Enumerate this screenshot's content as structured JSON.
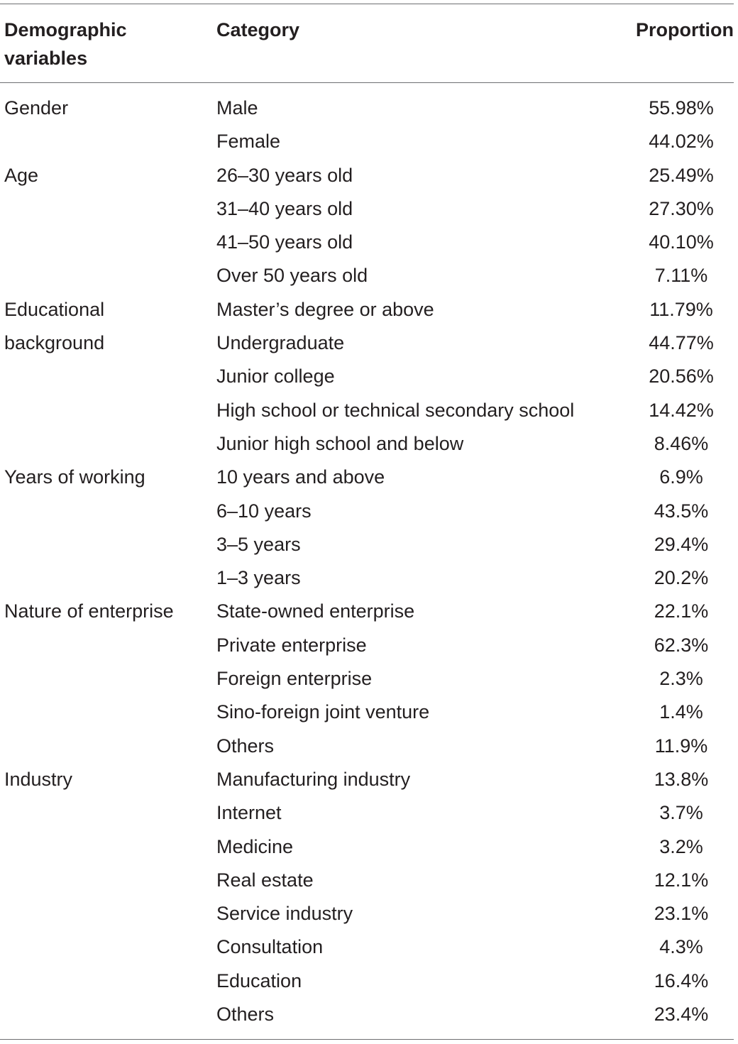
{
  "table": {
    "headers": {
      "variable_line1": "Demographic",
      "variable_line2": "variables",
      "category": "Category",
      "proportion": "Proportion"
    },
    "rows": [
      {
        "variable": "Gender",
        "category": "Male",
        "proportion": "55.98%"
      },
      {
        "variable": "",
        "category": "Female",
        "proportion": "44.02%"
      },
      {
        "variable": "Age",
        "category": "26–30 years old",
        "proportion": "25.49%"
      },
      {
        "variable": "",
        "category": "31–40 years old",
        "proportion": "27.30%"
      },
      {
        "variable": "",
        "category": "41–50 years old",
        "proportion": "40.10%"
      },
      {
        "variable": "",
        "category": "Over 50 years old",
        "proportion": "7.11%"
      },
      {
        "variable": "Educational",
        "category": "Master’s degree or above",
        "proportion": "11.79%"
      },
      {
        "variable": "background",
        "category": "Undergraduate",
        "proportion": "44.77%"
      },
      {
        "variable": "",
        "category": "Junior college",
        "proportion": "20.56%"
      },
      {
        "variable": "",
        "category": "High school or technical secondary school",
        "proportion": "14.42%"
      },
      {
        "variable": "",
        "category": "Junior high school and below",
        "proportion": "8.46%"
      },
      {
        "variable": "Years of working",
        "category": "10 years and above",
        "proportion": "6.9%"
      },
      {
        "variable": "",
        "category": "6–10 years",
        "proportion": "43.5%"
      },
      {
        "variable": "",
        "category": "3–5 years",
        "proportion": "29.4%"
      },
      {
        "variable": "",
        "category": "1–3 years",
        "proportion": "20.2%"
      },
      {
        "variable": "Nature of enterprise",
        "category": "State-owned enterprise",
        "proportion": "22.1%"
      },
      {
        "variable": "",
        "category": "Private enterprise",
        "proportion": "62.3%"
      },
      {
        "variable": "",
        "category": "Foreign enterprise",
        "proportion": "2.3%"
      },
      {
        "variable": "",
        "category": "Sino-foreign joint venture",
        "proportion": "1.4%"
      },
      {
        "variable": "",
        "category": "Others",
        "proportion": "11.9%"
      },
      {
        "variable": "Industry",
        "category": "Manufacturing industry",
        "proportion": "13.8%"
      },
      {
        "variable": "",
        "category": "Internet",
        "proportion": "3.7%"
      },
      {
        "variable": "",
        "category": "Medicine",
        "proportion": "3.2%"
      },
      {
        "variable": "",
        "category": "Real estate",
        "proportion": "12.1%"
      },
      {
        "variable": "",
        "category": "Service industry",
        "proportion": "23.1%"
      },
      {
        "variable": "",
        "category": "Consultation",
        "proportion": "4.3%"
      },
      {
        "variable": "",
        "category": "Education",
        "proportion": "16.4%"
      },
      {
        "variable": "",
        "category": "Others",
        "proportion": "23.4%"
      }
    ]
  }
}
